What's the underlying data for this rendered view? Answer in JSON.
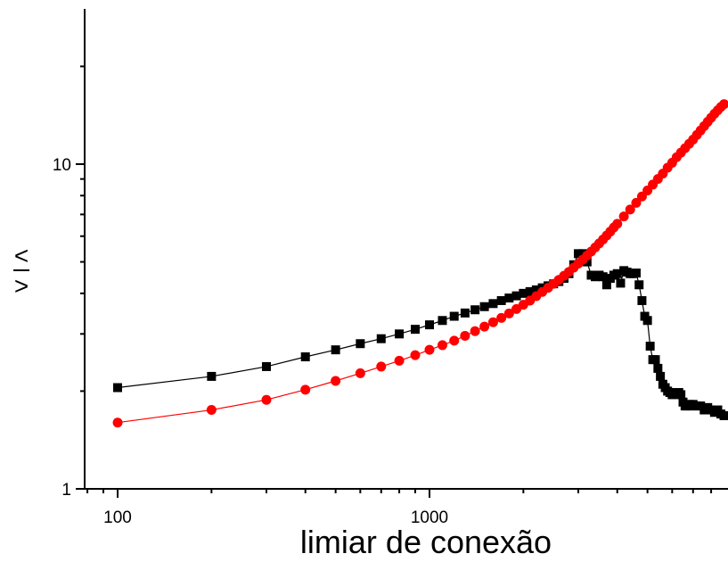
{
  "chart_data": {
    "type": "scatter",
    "title": "",
    "xlabel": "limiar de conexão",
    "ylabel_top": "<",
    "ylabel_bottom": ">",
    "xscale": "log",
    "yscale": "log",
    "xlim": [
      80,
      8900
    ],
    "ylim": [
      1,
      25
    ],
    "xticks": [
      {
        "value": 100,
        "label": "100"
      },
      {
        "value": 1000,
        "label": "1000"
      }
    ],
    "yticks": [
      {
        "value": 1,
        "label": "1"
      },
      {
        "value": 10,
        "label": "10"
      }
    ],
    "grid": false,
    "legend": "none",
    "series": [
      {
        "color": "#000000",
        "marker": "square",
        "points": [
          [
            100,
            2.05
          ],
          [
            200,
            2.22
          ],
          [
            300,
            2.38
          ],
          [
            400,
            2.55
          ],
          [
            500,
            2.68
          ],
          [
            600,
            2.8
          ],
          [
            700,
            2.9
          ],
          [
            800,
            3.0
          ],
          [
            900,
            3.1
          ],
          [
            1000,
            3.2
          ],
          [
            1100,
            3.3
          ],
          [
            1200,
            3.4
          ],
          [
            1300,
            3.48
          ],
          [
            1400,
            3.56
          ],
          [
            1500,
            3.64
          ],
          [
            1600,
            3.72
          ],
          [
            1700,
            3.8
          ],
          [
            1800,
            3.87
          ],
          [
            1900,
            3.93
          ],
          [
            2000,
            4.0
          ],
          [
            2100,
            4.05
          ],
          [
            2200,
            4.1
          ],
          [
            2300,
            4.16
          ],
          [
            2400,
            4.22
          ],
          [
            2500,
            4.28
          ],
          [
            2600,
            4.35
          ],
          [
            2700,
            4.45
          ],
          [
            2800,
            4.6
          ],
          [
            2900,
            4.9
          ],
          [
            3000,
            5.3
          ],
          [
            3100,
            5.3
          ],
          [
            3200,
            5.0
          ],
          [
            3300,
            4.55
          ],
          [
            3400,
            4.5
          ],
          [
            3500,
            4.55
          ],
          [
            3600,
            4.5
          ],
          [
            3700,
            4.25
          ],
          [
            3800,
            4.45
          ],
          [
            3900,
            4.55
          ],
          [
            4000,
            4.6
          ],
          [
            4100,
            4.3
          ],
          [
            4200,
            4.7
          ],
          [
            4300,
            4.65
          ],
          [
            4400,
            4.6
          ],
          [
            4500,
            4.6
          ],
          [
            4600,
            4.62
          ],
          [
            4700,
            4.25
          ],
          [
            4800,
            3.8
          ],
          [
            4900,
            3.4
          ],
          [
            5000,
            3.3
          ],
          [
            5100,
            2.75
          ],
          [
            5200,
            2.5
          ],
          [
            5300,
            2.5
          ],
          [
            5400,
            2.35
          ],
          [
            5500,
            2.22
          ],
          [
            5600,
            2.1
          ],
          [
            5700,
            2.05
          ],
          [
            5800,
            2.0
          ],
          [
            5900,
            1.98
          ],
          [
            6000,
            1.95
          ],
          [
            6100,
            1.97
          ],
          [
            6200,
            1.98
          ],
          [
            6300,
            1.98
          ],
          [
            6400,
            1.95
          ],
          [
            6500,
            1.85
          ],
          [
            6600,
            1.8
          ],
          [
            6700,
            1.8
          ],
          [
            6800,
            1.82
          ],
          [
            6900,
            1.8
          ],
          [
            7000,
            1.82
          ],
          [
            7200,
            1.8
          ],
          [
            7400,
            1.8
          ],
          [
            7600,
            1.75
          ],
          [
            7800,
            1.78
          ],
          [
            8000,
            1.75
          ],
          [
            8200,
            1.72
          ],
          [
            8400,
            1.75
          ],
          [
            8600,
            1.7
          ],
          [
            8800,
            1.68
          ]
        ]
      },
      {
        "color": "#ff0000",
        "marker": "circle",
        "points": [
          [
            100,
            1.6
          ],
          [
            200,
            1.75
          ],
          [
            300,
            1.88
          ],
          [
            400,
            2.02
          ],
          [
            500,
            2.15
          ],
          [
            600,
            2.27
          ],
          [
            700,
            2.38
          ],
          [
            800,
            2.48
          ],
          [
            900,
            2.58
          ],
          [
            1000,
            2.68
          ],
          [
            1100,
            2.77
          ],
          [
            1200,
            2.86
          ],
          [
            1300,
            2.96
          ],
          [
            1400,
            3.06
          ],
          [
            1500,
            3.16
          ],
          [
            1600,
            3.26
          ],
          [
            1700,
            3.36
          ],
          [
            1800,
            3.47
          ],
          [
            1900,
            3.58
          ],
          [
            2000,
            3.69
          ],
          [
            2100,
            3.8
          ],
          [
            2200,
            3.92
          ],
          [
            2300,
            4.04
          ],
          [
            2400,
            4.16
          ],
          [
            2500,
            4.28
          ],
          [
            2600,
            4.4
          ],
          [
            2700,
            4.53
          ],
          [
            2800,
            4.66
          ],
          [
            2900,
            4.8
          ],
          [
            3000,
            4.94
          ],
          [
            3100,
            5.08
          ],
          [
            3200,
            5.23
          ],
          [
            3300,
            5.38
          ],
          [
            3400,
            5.54
          ],
          [
            3500,
            5.7
          ],
          [
            3600,
            5.86
          ],
          [
            3700,
            6.03
          ],
          [
            3800,
            6.2
          ],
          [
            3900,
            6.38
          ],
          [
            4000,
            6.55
          ],
          [
            4200,
            6.9
          ],
          [
            4400,
            7.25
          ],
          [
            4600,
            7.6
          ],
          [
            4800,
            7.95
          ],
          [
            5000,
            8.3
          ],
          [
            5200,
            8.65
          ],
          [
            5400,
            9.0
          ],
          [
            5600,
            9.35
          ],
          [
            5800,
            9.75
          ],
          [
            6000,
            10.1
          ],
          [
            6200,
            10.5
          ],
          [
            6400,
            10.85
          ],
          [
            6600,
            11.2
          ],
          [
            6800,
            11.55
          ],
          [
            7000,
            11.9
          ],
          [
            7200,
            12.3
          ],
          [
            7400,
            12.7
          ],
          [
            7600,
            13.1
          ],
          [
            7800,
            13.5
          ],
          [
            8000,
            13.9
          ],
          [
            8200,
            14.3
          ],
          [
            8400,
            14.65
          ],
          [
            8600,
            15.0
          ],
          [
            8800,
            15.3
          ]
        ]
      }
    ]
  }
}
